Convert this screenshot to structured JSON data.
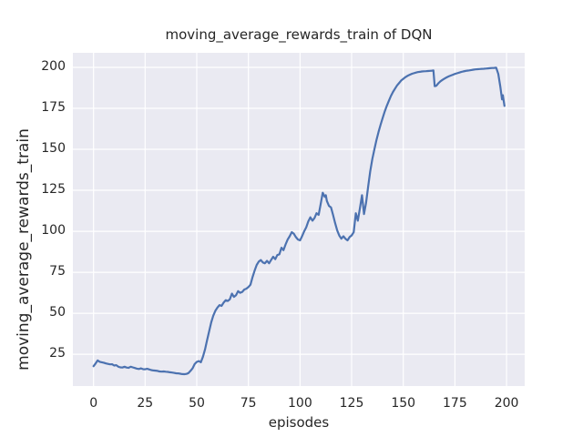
{
  "chart_data": {
    "type": "line",
    "title": "moving_average_rewards_train of DQN",
    "xlabel": "episodes",
    "ylabel": "moving_average_rewards_train",
    "x_ticks": [
      0,
      25,
      50,
      75,
      100,
      125,
      150,
      175,
      200
    ],
    "y_ticks": [
      25,
      50,
      75,
      100,
      125,
      150,
      175,
      200
    ],
    "xlim": [
      -10,
      208.8
    ],
    "ylim": [
      5.6,
      208.9
    ],
    "grid": true,
    "legend": false,
    "background_color": "#eaeaf2",
    "grid_color": "#ffffff",
    "line_color": "#4c72b0",
    "text_color": "#262626",
    "figure_background": "#ffffff",
    "series": [
      {
        "name": "moving_average_rewards_train",
        "points": [
          [
            0,
            17.7
          ],
          [
            1,
            19.3
          ],
          [
            2,
            21.2
          ],
          [
            3,
            20.4
          ],
          [
            4,
            20.1
          ],
          [
            5,
            19.8
          ],
          [
            6,
            19.4
          ],
          [
            7,
            19.1
          ],
          [
            8,
            18.8
          ],
          [
            9,
            18.9
          ],
          [
            10,
            18.1
          ],
          [
            11,
            18.3
          ],
          [
            12,
            17.4
          ],
          [
            13,
            17.0
          ],
          [
            14,
            16.9
          ],
          [
            15,
            17.4
          ],
          [
            16,
            16.9
          ],
          [
            17,
            16.7
          ],
          [
            18,
            17.4
          ],
          [
            19,
            17.0
          ],
          [
            20,
            16.6
          ],
          [
            21,
            16.2
          ],
          [
            22,
            16.0
          ],
          [
            23,
            16.4
          ],
          [
            24,
            15.9
          ],
          [
            25,
            15.8
          ],
          [
            26,
            16.1
          ],
          [
            27,
            15.7
          ],
          [
            28,
            15.3
          ],
          [
            29,
            15.1
          ],
          [
            30,
            15.0
          ],
          [
            31,
            14.8
          ],
          [
            32,
            14.5
          ],
          [
            33,
            14.4
          ],
          [
            34,
            14.5
          ],
          [
            35,
            14.3
          ],
          [
            36,
            14.2
          ],
          [
            37,
            14.0
          ],
          [
            38,
            13.8
          ],
          [
            39,
            13.6
          ],
          [
            40,
            13.4
          ],
          [
            41,
            13.3
          ],
          [
            42,
            13.1
          ],
          [
            43,
            12.9
          ],
          [
            44,
            12.8
          ],
          [
            45,
            13.0
          ],
          [
            46,
            13.5
          ],
          [
            47,
            14.9
          ],
          [
            48,
            16.5
          ],
          [
            49,
            19.0
          ],
          [
            50,
            20.3
          ],
          [
            51,
            20.8
          ],
          [
            52,
            20.1
          ],
          [
            53,
            23.5
          ],
          [
            54,
            28.0
          ],
          [
            55,
            33.5
          ],
          [
            56,
            39.0
          ],
          [
            57,
            44.5
          ],
          [
            58,
            48.5
          ],
          [
            59,
            51.5
          ],
          [
            60,
            53.5
          ],
          [
            61,
            55.0
          ],
          [
            62,
            54.5
          ],
          [
            63,
            56.5
          ],
          [
            64,
            58.0
          ],
          [
            65,
            57.5
          ],
          [
            66,
            58.5
          ],
          [
            67,
            62.0
          ],
          [
            68,
            60.0
          ],
          [
            69,
            61.0
          ],
          [
            70,
            63.5
          ],
          [
            71,
            62.5
          ],
          [
            72,
            63.0
          ],
          [
            73,
            64.5
          ],
          [
            74,
            65.0
          ],
          [
            75,
            66.0
          ],
          [
            76,
            67.5
          ],
          [
            77,
            72.0
          ],
          [
            78,
            76.0
          ],
          [
            79,
            79.5
          ],
          [
            80,
            81.5
          ],
          [
            81,
            82.5
          ],
          [
            82,
            81.0
          ],
          [
            83,
            80.5
          ],
          [
            84,
            82.0
          ],
          [
            85,
            80.5
          ],
          [
            86,
            82.5
          ],
          [
            87,
            84.5
          ],
          [
            88,
            83.0
          ],
          [
            89,
            85.5
          ],
          [
            90,
            86.0
          ],
          [
            91,
            90.0
          ],
          [
            92,
            88.5
          ],
          [
            93,
            92.0
          ],
          [
            94,
            95.0
          ],
          [
            95,
            97.0
          ],
          [
            96,
            99.5
          ],
          [
            97,
            98.5
          ],
          [
            98,
            96.5
          ],
          [
            99,
            95.0
          ],
          [
            100,
            94.5
          ],
          [
            101,
            97.0
          ],
          [
            102,
            100.0
          ],
          [
            103,
            102.5
          ],
          [
            104,
            106.0
          ],
          [
            105,
            108.5
          ],
          [
            106,
            106.5
          ],
          [
            107,
            108.0
          ],
          [
            108,
            111.0
          ],
          [
            109,
            110.0
          ],
          [
            110,
            116.5
          ],
          [
            111,
            123.5
          ],
          [
            112,
            121.0
          ],
          [
            112.5,
            122.0
          ],
          [
            113,
            118.5
          ],
          [
            114,
            115.5
          ],
          [
            115,
            114.5
          ],
          [
            116,
            110.0
          ],
          [
            117,
            105.0
          ],
          [
            118,
            100.5
          ],
          [
            119,
            97.5
          ],
          [
            120,
            95.5
          ],
          [
            121,
            97.0
          ],
          [
            122,
            95.5
          ],
          [
            123,
            94.5
          ],
          [
            124,
            96.5
          ],
          [
            125,
            97.5
          ],
          [
            126,
            99.5
          ],
          [
            127,
            111.0
          ],
          [
            128,
            106.5
          ],
          [
            129,
            114.0
          ],
          [
            130,
            122.0
          ],
          [
            131,
            110.5
          ],
          [
            132,
            117.5
          ],
          [
            133,
            127.5
          ],
          [
            134,
            136.5
          ],
          [
            135,
            144.0
          ],
          [
            136,
            150.0
          ],
          [
            137,
            155.5
          ],
          [
            138,
            160.5
          ],
          [
            139,
            165.0
          ],
          [
            140,
            169.0
          ],
          [
            141,
            173.0
          ],
          [
            142,
            176.5
          ],
          [
            143,
            179.5
          ],
          [
            144,
            182.5
          ],
          [
            145,
            185.0
          ],
          [
            146,
            187.0
          ],
          [
            147,
            189.0
          ],
          [
            148,
            190.5
          ],
          [
            149,
            192.0
          ],
          [
            150,
            193.0
          ],
          [
            151,
            194.0
          ],
          [
            152,
            194.8
          ],
          [
            153,
            195.4
          ],
          [
            154,
            196.0
          ],
          [
            155,
            196.4
          ],
          [
            156,
            196.8
          ],
          [
            157,
            197.1
          ],
          [
            158,
            197.3
          ],
          [
            159,
            197.5
          ],
          [
            160,
            197.6
          ],
          [
            161,
            197.7
          ],
          [
            162,
            197.8
          ],
          [
            163,
            197.9
          ],
          [
            164,
            198.0
          ],
          [
            164.6,
            198.1
          ],
          [
            165.2,
            188.5
          ],
          [
            166,
            188.8
          ],
          [
            167,
            190.3
          ],
          [
            168,
            191.5
          ],
          [
            169,
            192.4
          ],
          [
            170,
            193.2
          ],
          [
            171,
            193.9
          ],
          [
            172,
            194.5
          ],
          [
            173,
            195.0
          ],
          [
            174,
            195.5
          ],
          [
            175,
            196.0
          ],
          [
            176,
            196.4
          ],
          [
            177,
            196.8
          ],
          [
            178,
            197.2
          ],
          [
            179,
            197.5
          ],
          [
            180,
            197.8
          ],
          [
            181,
            198.0
          ],
          [
            182,
            198.2
          ],
          [
            183,
            198.4
          ],
          [
            184,
            198.6
          ],
          [
            185,
            198.8
          ],
          [
            186,
            198.9
          ],
          [
            187,
            199.0
          ],
          [
            188,
            199.1
          ],
          [
            189,
            199.2
          ],
          [
            190,
            199.3
          ],
          [
            191,
            199.4
          ],
          [
            192,
            199.5
          ],
          [
            193,
            199.6
          ],
          [
            194,
            199.7
          ],
          [
            195,
            199.8
          ],
          [
            196,
            196.0
          ],
          [
            197,
            188.0
          ],
          [
            197.8,
            180.5
          ],
          [
            198.2,
            183.0
          ],
          [
            199,
            176.5
          ]
        ]
      }
    ]
  }
}
